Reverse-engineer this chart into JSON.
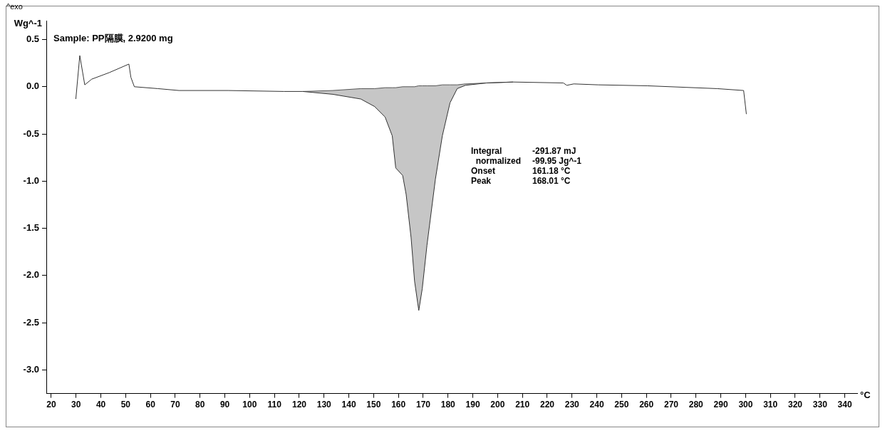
{
  "chart_data": {
    "type": "line",
    "ylabel": "Wg^-1",
    "xlabel": "°C",
    "xlim": [
      18,
      345
    ],
    "xticks": [
      20,
      30,
      40,
      50,
      60,
      70,
      80,
      90,
      100,
      110,
      120,
      130,
      140,
      150,
      160,
      170,
      180,
      190,
      200,
      210,
      220,
      230,
      240,
      250,
      260,
      270,
      280,
      290,
      300,
      310,
      320,
      330,
      340
    ],
    "ylim": [
      -3.25,
      0.7
    ],
    "yticks": [
      0.5,
      {
        "value": 0,
        "label": "0.0"
      },
      -0.5,
      {
        "value": -1,
        "label": "-1.0"
      },
      -1.5,
      {
        "value": -2,
        "label": "-2.0"
      },
      -2.5,
      {
        "value": -3,
        "label": "-3.0"
      }
    ],
    "grid": false,
    "legend": false,
    "marker": "none",
    "line_style": "solid",
    "annotations": [
      "^exo",
      "Sample: PP隔膜, 2.9200 mg",
      "Integral\t-291.87 mJ",
      "  normalized\t-99.95 Jg^-1",
      "Onset\t161.18 °C",
      "Peak\t168.01 °C"
    ],
    "series": [
      {
        "type": "line",
        "color": "#333333",
        "x": [
          29.9,
          31.5,
          33.5,
          36.3,
          43.4,
          51.3,
          52.1,
          53.5,
          63,
          71.5,
          91.3,
          113.8,
          121.4,
          133.5,
          144.8,
          150.4,
          154.6,
          157.5,
          158.9,
          161.7,
          163.1,
          165.1,
          166.5,
          168.2,
          169.6,
          171.5,
          174.9,
          177.7,
          180.8,
          183.7,
          187,
          195.5,
          206.2,
          226.5,
          227.9,
          230.7,
          240.6,
          260.3,
          288.5,
          299.2,
          300.3
        ],
        "values": [
          -0.13,
          0.33,
          0.02,
          0.08,
          0.15,
          0.24,
          0.1,
          0,
          -0.02,
          -0.04,
          -0.04,
          -0.05,
          -0.05,
          -0.08,
          -0.13,
          -0.21,
          -0.32,
          -0.52,
          -0.86,
          -0.94,
          -1.14,
          -1.6,
          -2.06,
          -2.37,
          -2.14,
          -1.68,
          -0.98,
          -0.52,
          -0.17,
          -0.02,
          0.015,
          0.04,
          0.05,
          0.04,
          0.015,
          0.03,
          0.02,
          0.01,
          -0.02,
          -0.04,
          -0.29
        ]
      },
      {
        "type": "line",
        "color": "#555555",
        "x": [
          121.4,
          133.5,
          144.8,
          150.4,
          154.6,
          157.5,
          158.9,
          161.7,
          163.1,
          165.1,
          166.5,
          168.2,
          169.6,
          171.5,
          174.9,
          177.7,
          180.8,
          183.7,
          187,
          195.5,
          206.2
        ],
        "values": [
          -0.05,
          -0.04,
          -0.02,
          -0.02,
          -0.01,
          -0.01,
          -0.01,
          0,
          0,
          0,
          0,
          0.01,
          0.01,
          0.01,
          0.01,
          0.02,
          0.02,
          0.02,
          0.03,
          0.04,
          0.05
        ],
        "lower": [
          -0.05,
          -0.08,
          -0.13,
          -0.21,
          -0.32,
          -0.52,
          -0.86,
          -0.94,
          -1.14,
          -1.6,
          -2.06,
          -2.37,
          -2.14,
          -1.68,
          -0.98,
          -0.52,
          -0.17,
          -0.02,
          0.015,
          0.04,
          0.05
        ],
        "upper": [
          -0.05,
          -0.04,
          -0.02,
          -0.02,
          -0.01,
          -0.01,
          -0.01,
          0,
          0,
          0,
          0,
          0.01,
          0.01,
          0.01,
          0.01,
          0.02,
          0.02,
          0.02,
          0.03,
          0.04,
          0.05
        ]
      }
    ]
  }
}
